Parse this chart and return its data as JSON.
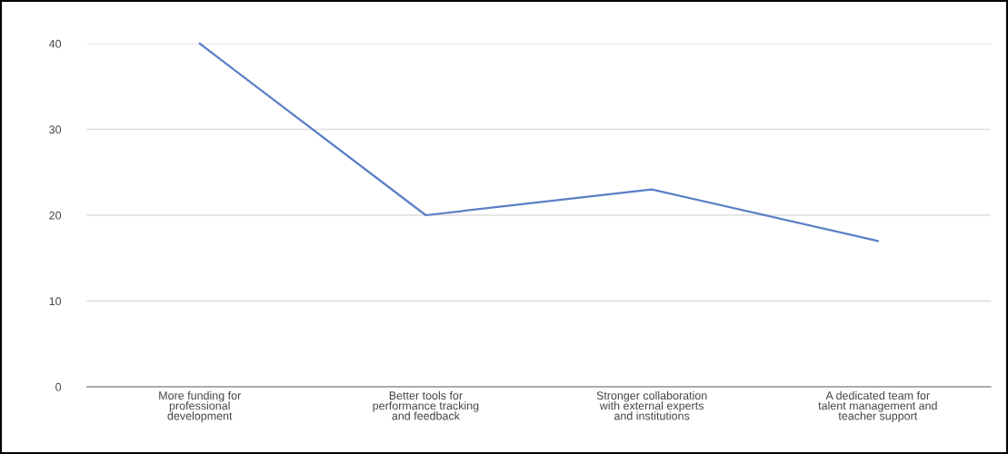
{
  "chart_data": {
    "type": "line",
    "categories": [
      "More funding for\nprofessional\ndevelopment",
      "Better tools for\nperformance tracking\nand feedback",
      "Stronger collaboration\nwith external experts\nand institutions",
      "A dedicated team for\ntalent management and\nteacher support"
    ],
    "series": [
      {
        "color": "#5b7fc7",
        "values": [
          40,
          20,
          23,
          17
        ]
      }
    ],
    "ylim": [
      0,
      40
    ],
    "yticks": [
      0,
      10,
      20,
      30,
      40
    ],
    "grid": "y",
    "legend": false,
    "marker": "none",
    "line_style": "solid"
  }
}
